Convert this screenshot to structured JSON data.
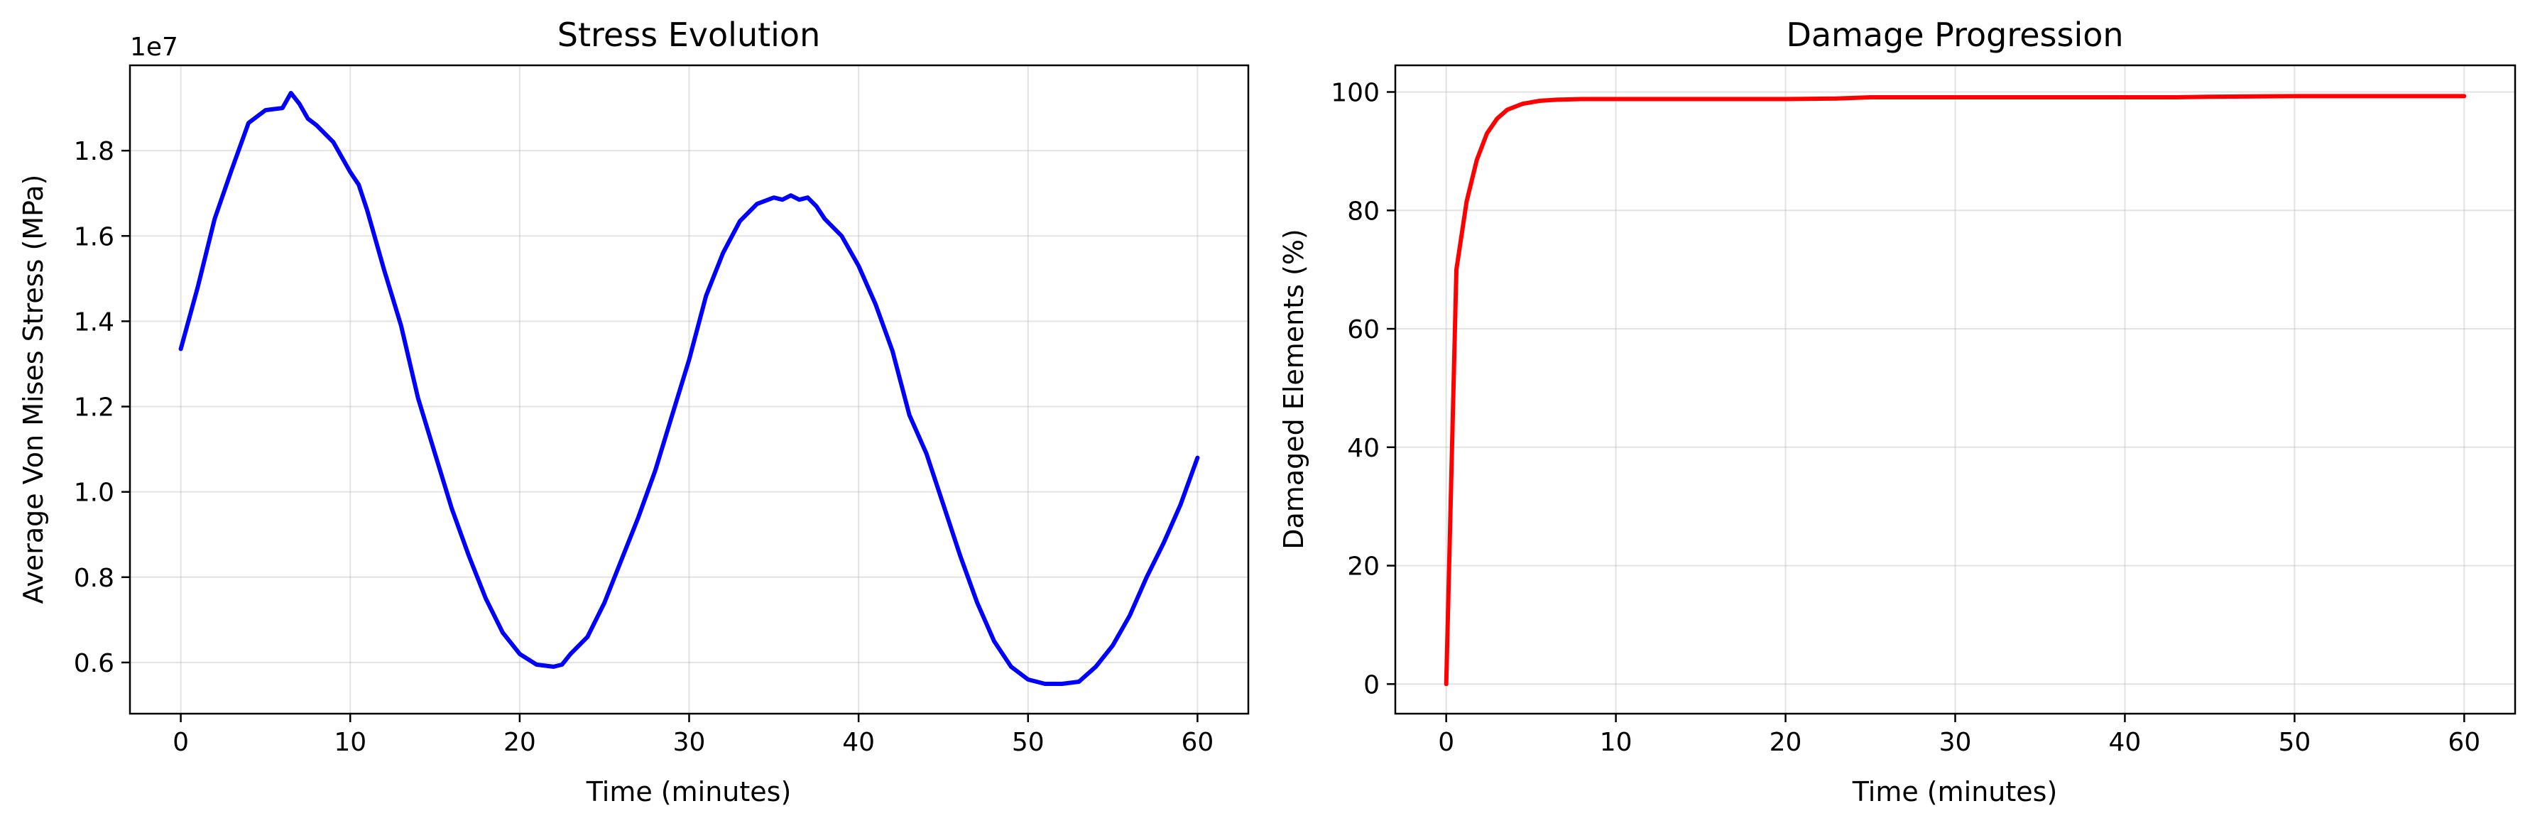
{
  "chart_data": [
    {
      "type": "line",
      "title": "Stress Evolution",
      "xlabel": "Time (minutes)",
      "ylabel": "Average Von Mises Stress (MPa)",
      "y_offset_label": "1e7",
      "xlim": [
        -3,
        63
      ],
      "ylim": [
        4.8,
        20.0
      ],
      "xticks": [
        0,
        10,
        20,
        30,
        40,
        50,
        60
      ],
      "yticks": [
        6,
        8,
        10,
        12,
        14,
        16,
        18
      ],
      "ytick_labels": [
        "0.6",
        "0.8",
        "1.0",
        "1.2",
        "1.4",
        "1.6",
        "1.8"
      ],
      "grid": true,
      "series": [
        {
          "color": "#0000ff",
          "x": [
            0,
            1,
            2,
            3,
            4,
            5,
            6,
            6.5,
            7,
            7.5,
            8,
            9,
            10,
            10.5,
            11,
            12,
            13,
            14,
            15,
            16,
            17,
            18,
            19,
            20,
            21,
            22,
            22.5,
            23,
            24,
            25,
            26,
            27,
            28,
            29,
            30,
            31,
            32,
            33,
            34,
            35,
            35.5,
            36,
            36.5,
            37,
            37.5,
            38,
            39,
            40,
            41,
            42,
            43,
            44,
            45,
            46,
            47,
            48,
            49,
            50,
            51,
            52,
            53,
            54,
            55,
            56,
            57,
            58,
            59,
            60
          ],
          "y": [
            13.35,
            14.8,
            16.4,
            17.55,
            18.65,
            18.95,
            19.0,
            19.35,
            19.1,
            18.75,
            18.6,
            18.2,
            17.5,
            17.2,
            16.6,
            15.2,
            13.9,
            12.2,
            10.9,
            9.6,
            8.5,
            7.5,
            6.7,
            6.2,
            5.95,
            5.9,
            5.95,
            6.2,
            6.6,
            7.4,
            8.4,
            9.4,
            10.5,
            11.8,
            13.1,
            14.6,
            15.6,
            16.35,
            16.75,
            16.9,
            16.85,
            16.95,
            16.85,
            16.9,
            16.7,
            16.4,
            16.0,
            15.3,
            14.4,
            13.3,
            11.8,
            10.9,
            9.7,
            8.5,
            7.4,
            6.5,
            5.9,
            5.6,
            5.5,
            5.5,
            5.55,
            5.9,
            6.4,
            7.1,
            8.0,
            8.8,
            9.7,
            10.8
          ]
        }
      ]
    },
    {
      "type": "line",
      "title": "Damage Progression",
      "xlabel": "Time (minutes)",
      "ylabel": "Damaged Elements (%)",
      "xlim": [
        -3,
        63
      ],
      "ylim": [
        -5,
        104.5
      ],
      "xticks": [
        0,
        10,
        20,
        30,
        40,
        50,
        60
      ],
      "yticks": [
        0,
        20,
        40,
        60,
        80,
        100
      ],
      "grid": true,
      "series": [
        {
          "color": "#ff0000",
          "x": [
            0,
            0.6,
            1.2,
            1.8,
            2.4,
            3,
            3.6,
            4.5,
            5.5,
            6.5,
            8,
            10,
            15,
            20,
            23,
            25,
            30,
            35,
            40,
            43,
            45,
            50,
            55,
            60
          ],
          "y": [
            0,
            70,
            81.5,
            88.5,
            93,
            95.5,
            97,
            98,
            98.5,
            98.7,
            98.8,
            98.8,
            98.8,
            98.8,
            98.9,
            99.1,
            99.1,
            99.1,
            99.1,
            99.1,
            99.2,
            99.3,
            99.3,
            99.3
          ]
        }
      ]
    }
  ]
}
